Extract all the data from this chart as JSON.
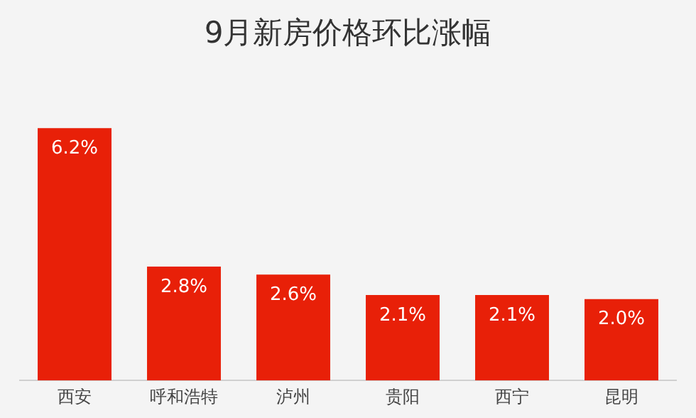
{
  "chart_data": {
    "type": "bar",
    "title": "9月新房价格环比涨幅",
    "categories": [
      "西安",
      "呼和浩特",
      "泸州",
      "贵阳",
      "西宁",
      "昆明"
    ],
    "values": [
      6.2,
      2.8,
      2.6,
      2.1,
      2.1,
      2.0
    ],
    "value_labels": [
      "6.2%",
      "2.8%",
      "2.6%",
      "2.1%",
      "2.1%",
      "2.0%"
    ],
    "color": "#e82008",
    "grid": false,
    "legend": false
  }
}
